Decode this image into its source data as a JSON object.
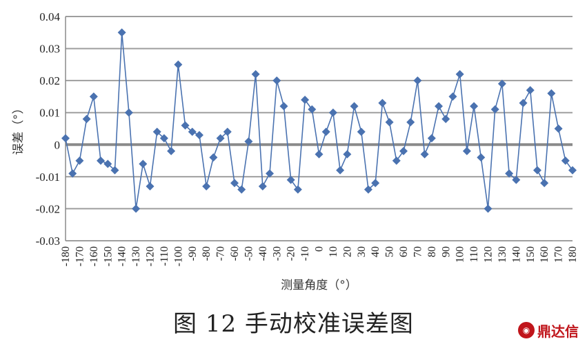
{
  "chart_data": {
    "type": "line",
    "title": "",
    "xlabel": "测量角度（°）",
    "ylabel": "误差（°）",
    "ylim": [
      -0.03,
      0.04
    ],
    "yticks": [
      "0.04",
      "0.03",
      "0.02",
      "0.01",
      "0",
      "-0.01",
      "-0.02",
      "-0.03"
    ],
    "xticks": [
      "-180",
      "-170",
      "-160",
      "-150",
      "-140",
      "-130",
      "-120",
      "-110",
      "-100",
      "-90",
      "-80",
      "-70",
      "-60",
      "-50",
      "-40",
      "-30",
      "-20",
      "-10",
      "0",
      "10",
      "20",
      "30",
      "40",
      "50",
      "60",
      "70",
      "80",
      "90",
      "100",
      "110",
      "120",
      "130",
      "140",
      "150",
      "160",
      "170",
      "180"
    ],
    "grid": true,
    "marker": "diamond",
    "series_color": "#4a72b0",
    "x": [
      -180,
      -175,
      -170,
      -165,
      -160,
      -155,
      -150,
      -145,
      -140,
      -135,
      -130,
      -125,
      -120,
      -115,
      -110,
      -105,
      -100,
      -95,
      -90,
      -85,
      -80,
      -75,
      -70,
      -65,
      -60,
      -55,
      -50,
      -45,
      -40,
      -35,
      -30,
      -25,
      -20,
      -15,
      -10,
      -5,
      0,
      5,
      10,
      15,
      20,
      25,
      30,
      35,
      40,
      45,
      50,
      55,
      60,
      65,
      70,
      75,
      80,
      85,
      90,
      95,
      100,
      105,
      110,
      115,
      120,
      125,
      130,
      135,
      140,
      145,
      150,
      155,
      160,
      165,
      170,
      175,
      180
    ],
    "values": [
      0.002,
      -0.009,
      -0.005,
      0.008,
      0.015,
      -0.005,
      -0.006,
      -0.008,
      0.035,
      0.01,
      -0.02,
      -0.006,
      -0.013,
      0.004,
      0.002,
      -0.002,
      0.025,
      0.006,
      0.004,
      0.003,
      -0.013,
      -0.004,
      0.002,
      0.004,
      -0.012,
      -0.014,
      0.001,
      0.022,
      -0.013,
      -0.009,
      0.02,
      0.012,
      -0.011,
      -0.014,
      0.014,
      0.011,
      -0.003,
      0.004,
      0.01,
      -0.008,
      -0.003,
      0.012,
      0.004,
      -0.014,
      -0.012,
      0.013,
      0.007,
      -0.005,
      -0.002,
      0.007,
      0.02,
      -0.003,
      0.002,
      0.012,
      0.008,
      0.015,
      0.022,
      -0.002,
      0.012,
      -0.004,
      -0.02,
      0.011,
      0.019,
      -0.009,
      -0.011,
      0.013,
      0.017,
      -0.008,
      -0.012,
      0.016,
      0.005,
      -0.005,
      -0.008
    ]
  },
  "caption": "图 12 手动校准误差图",
  "logo_text": "鼎达信"
}
